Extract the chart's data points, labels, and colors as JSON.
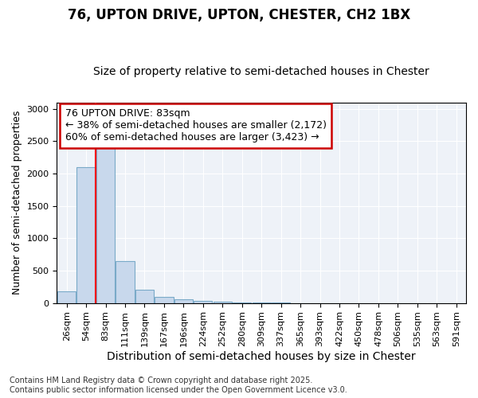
{
  "title1": "76, UPTON DRIVE, UPTON, CHESTER, CH2 1BX",
  "title2": "Size of property relative to semi-detached houses in Chester",
  "xlabel": "Distribution of semi-detached houses by size in Chester",
  "ylabel": "Number of semi-detached properties",
  "categories": [
    "26sqm",
    "54sqm",
    "83sqm",
    "111sqm",
    "139sqm",
    "167sqm",
    "196sqm",
    "224sqm",
    "252sqm",
    "280sqm",
    "309sqm",
    "337sqm",
    "365sqm",
    "393sqm",
    "422sqm",
    "450sqm",
    "478sqm",
    "506sqm",
    "535sqm",
    "563sqm",
    "591sqm"
  ],
  "values": [
    175,
    2100,
    2450,
    650,
    200,
    95,
    55,
    35,
    25,
    10,
    4,
    2,
    1,
    0,
    0,
    0,
    0,
    0,
    0,
    0,
    0
  ],
  "bar_color": "#c8d8ec",
  "bar_edge_color": "#7aaac8",
  "red_line_x": 2.0,
  "annotation_text_line1": "76 UPTON DRIVE: 83sqm",
  "annotation_text_line2": "← 38% of semi-detached houses are smaller (2,172)",
  "annotation_text_line3": "60% of semi-detached houses are larger (3,423) →",
  "annotation_box_color": "#ffffff",
  "annotation_box_edge_color": "#cc0000",
  "ylim": [
    0,
    3100
  ],
  "yticks": [
    0,
    500,
    1000,
    1500,
    2000,
    2500,
    3000
  ],
  "background_color": "#eef2f8",
  "grid_color": "#ffffff",
  "footer_text": "Contains HM Land Registry data © Crown copyright and database right 2025.\nContains public sector information licensed under the Open Government Licence v3.0.",
  "title1_fontsize": 12,
  "title2_fontsize": 10,
  "xlabel_fontsize": 10,
  "ylabel_fontsize": 9,
  "tick_fontsize": 8,
  "annotation_fontsize": 9,
  "footer_fontsize": 7
}
